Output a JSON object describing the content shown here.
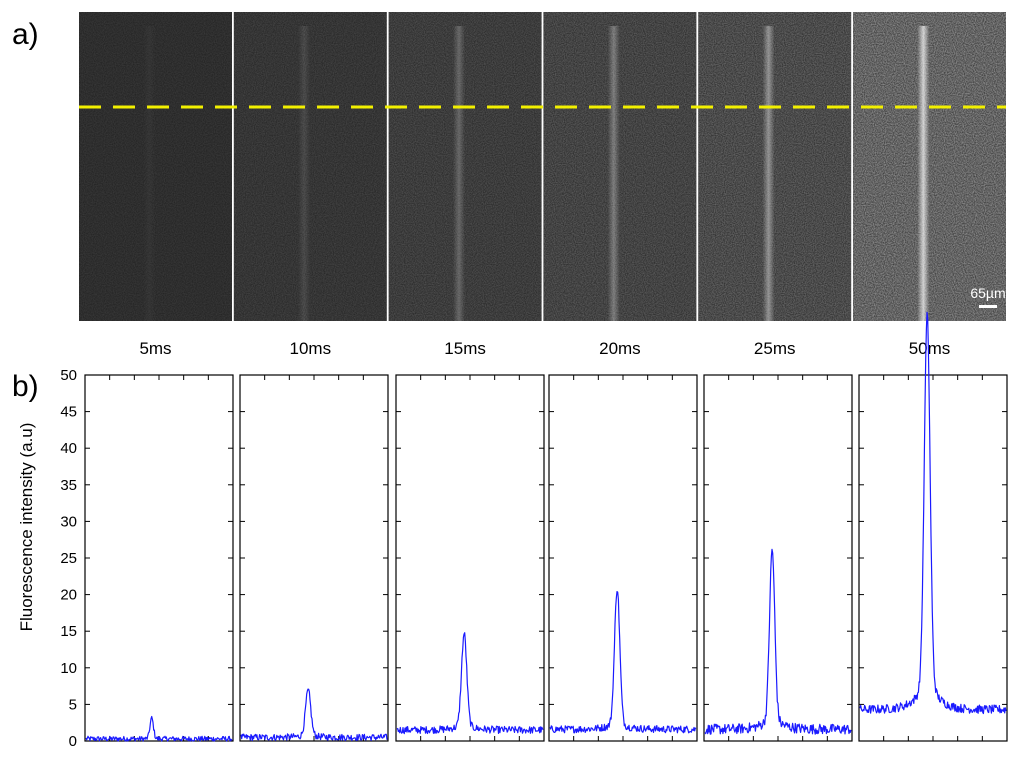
{
  "figure": {
    "panel_a_label": "a)",
    "panel_b_label": "b)",
    "scale_bar_label": "65µm"
  },
  "colors": {
    "trace": "#1a1aff",
    "dashed_line": "#f2f000",
    "image_bg": "#1c1c1c",
    "streak": "#ffffff"
  },
  "images": [
    {
      "label": "5ms",
      "streak_brightness": 0.03,
      "noise": 0.05
    },
    {
      "label": "10ms",
      "streak_brightness": 0.1,
      "noise": 0.07
    },
    {
      "label": "15ms",
      "streak_brightness": 0.22,
      "noise": 0.09
    },
    {
      "label": "20ms",
      "streak_brightness": 0.3,
      "noise": 0.11
    },
    {
      "label": "25ms",
      "streak_brightness": 0.4,
      "noise": 0.13
    },
    {
      "label": "50ms",
      "streak_brightness": 0.7,
      "noise": 0.2
    }
  ],
  "chart_data": {
    "type": "line",
    "ylabel": "Fluorescence intensity (a.u)",
    "ylim": [
      0,
      50
    ],
    "yticks": [
      0,
      5,
      10,
      15,
      20,
      25,
      30,
      35,
      40,
      45,
      50
    ],
    "grid": false,
    "series": [
      {
        "name": "5ms",
        "baseline": 0.3,
        "noise": 0.35,
        "peak": 2.8,
        "peak_pos": 0.45,
        "peak_width": 0.012,
        "shoulder": 0.0
      },
      {
        "name": "10ms",
        "baseline": 0.5,
        "noise": 0.45,
        "peak": 6.1,
        "peak_pos": 0.46,
        "peak_width": 0.018,
        "shoulder": 0.3
      },
      {
        "name": "15ms",
        "baseline": 1.5,
        "noise": 0.5,
        "peak": 12.4,
        "peak_pos": 0.46,
        "peak_width": 0.018,
        "shoulder": 0.8
      },
      {
        "name": "20ms",
        "baseline": 1.6,
        "noise": 0.5,
        "peak": 18.3,
        "peak_pos": 0.46,
        "peak_width": 0.018,
        "shoulder": 1.0
      },
      {
        "name": "25ms",
        "baseline": 1.6,
        "noise": 0.7,
        "peak": 22.8,
        "peak_pos": 0.46,
        "peak_width": 0.018,
        "shoulder": 1.8
      },
      {
        "name": "50ms",
        "baseline": 4.3,
        "noise": 0.6,
        "peak": 49.0,
        "peak_pos": 0.46,
        "peak_width": 0.02,
        "shoulder": 5.0
      }
    ]
  }
}
